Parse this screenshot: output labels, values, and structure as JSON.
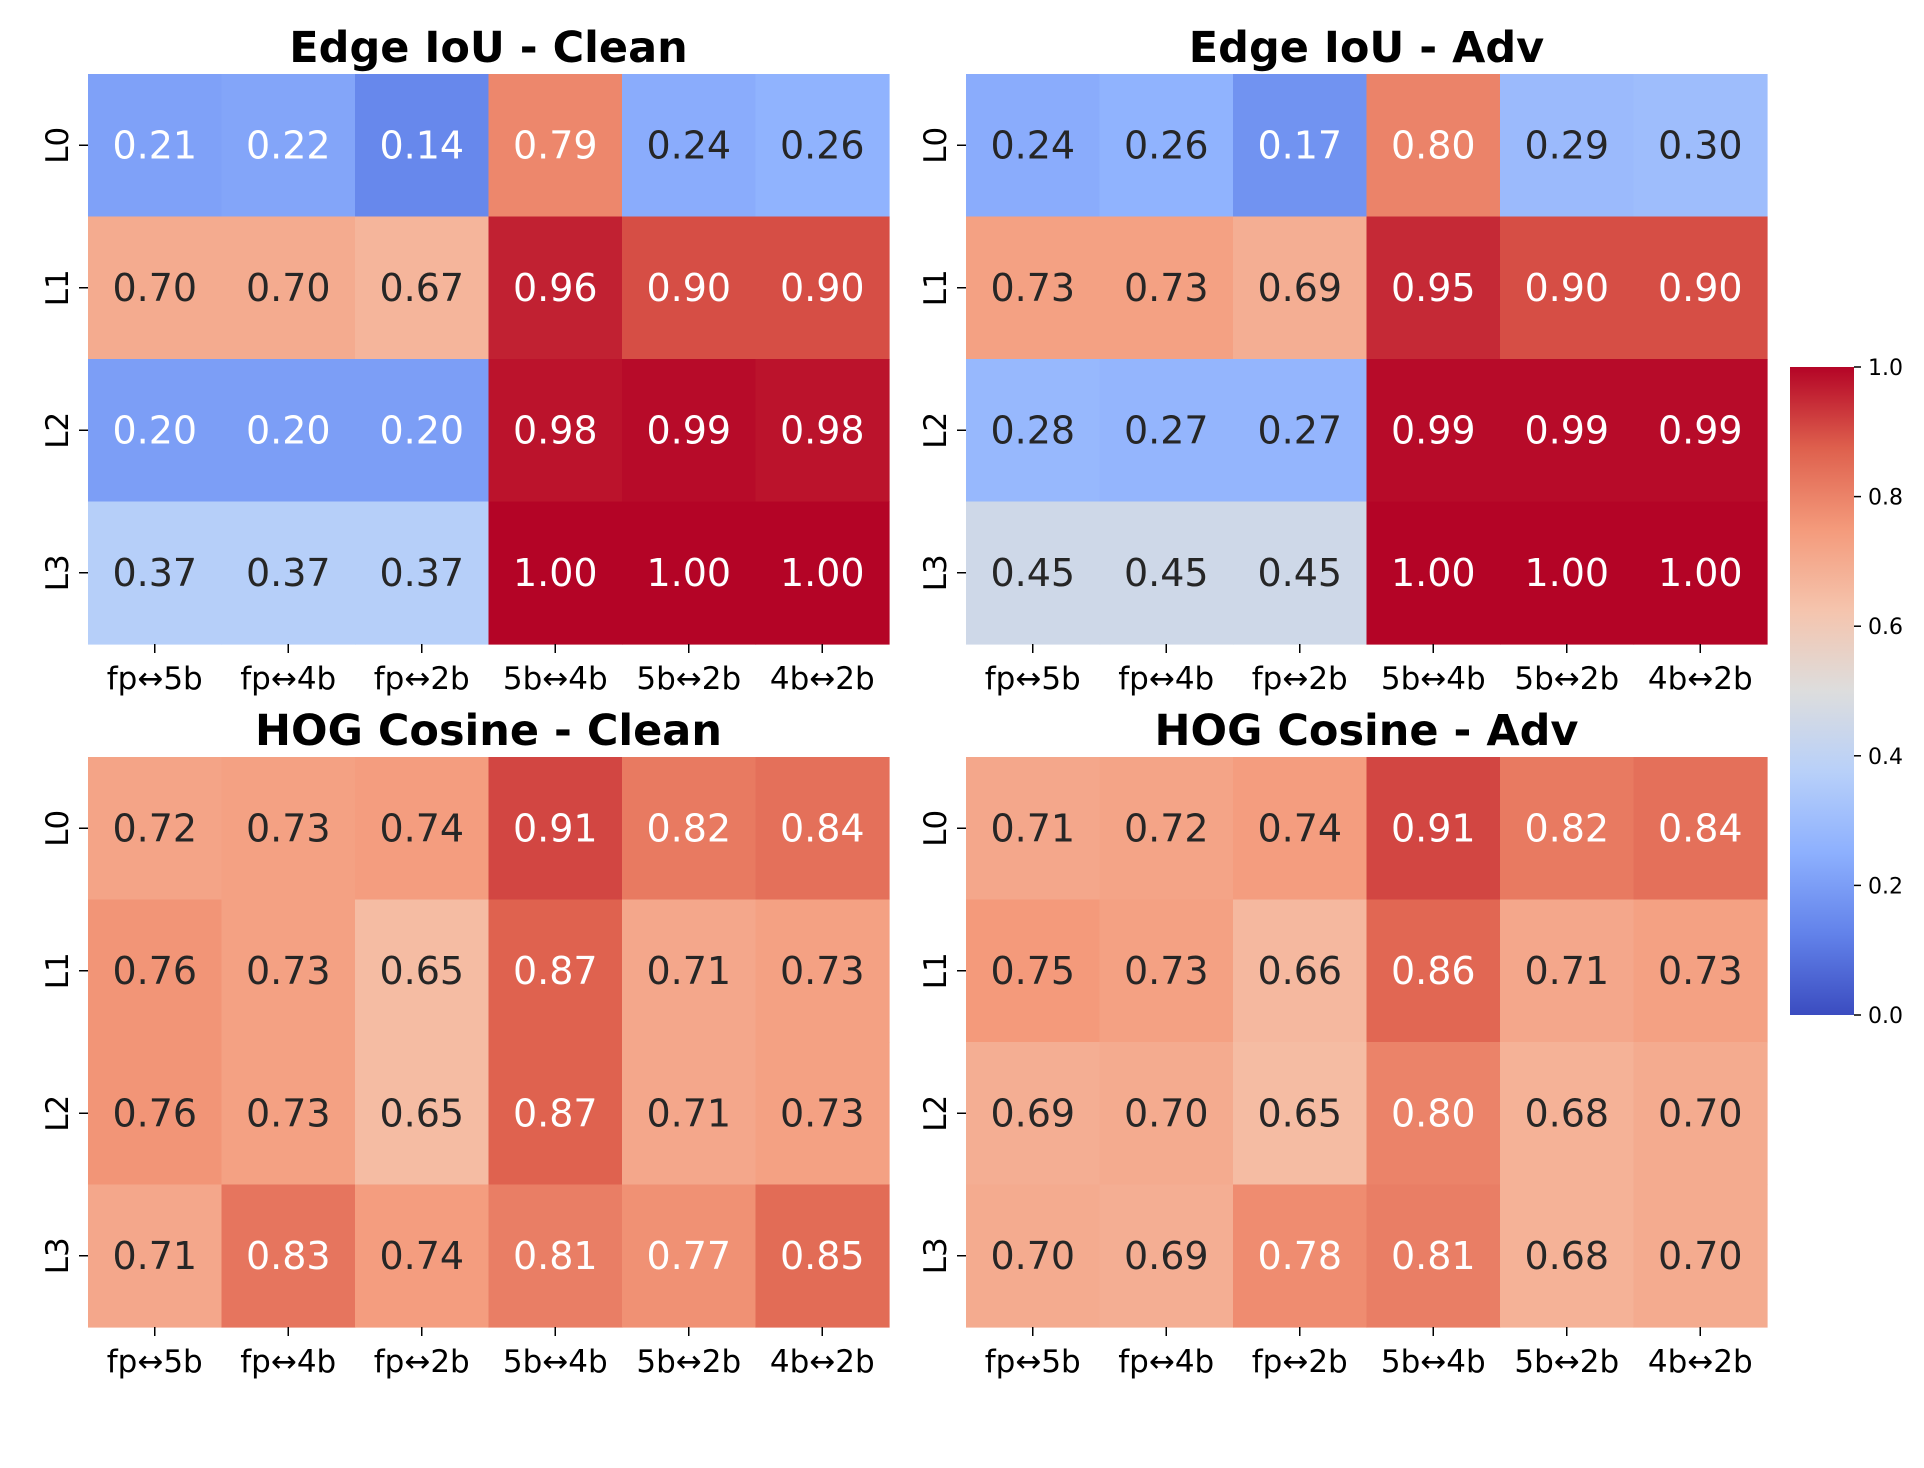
{
  "chart_data": {
    "type": "heatmap",
    "colorbar": {
      "range": [
        0.0,
        1.0
      ],
      "ticks": [
        "0.0",
        "0.2",
        "0.4",
        "0.6",
        "0.8",
        "1.0"
      ],
      "colormap": "coolwarm"
    },
    "panels": [
      {
        "title": "Edge IoU - Clean",
        "columns": [
          "fp↔5b",
          "fp↔4b",
          "fp↔2b",
          "5b↔4b",
          "5b↔2b",
          "4b↔2b"
        ],
        "rows": [
          "L0",
          "L1",
          "L2",
          "L3"
        ],
        "values": [
          [
            0.21,
            0.22,
            0.14,
            0.79,
            0.24,
            0.26
          ],
          [
            0.7,
            0.7,
            0.67,
            0.96,
            0.9,
            0.9
          ],
          [
            0.2,
            0.2,
            0.2,
            0.98,
            0.99,
            0.98
          ],
          [
            0.37,
            0.37,
            0.37,
            1.0,
            1.0,
            1.0
          ]
        ]
      },
      {
        "title": "Edge IoU - Adv",
        "columns": [
          "fp↔5b",
          "fp↔4b",
          "fp↔2b",
          "5b↔4b",
          "5b↔2b",
          "4b↔2b"
        ],
        "rows": [
          "L0",
          "L1",
          "L2",
          "L3"
        ],
        "values": [
          [
            0.24,
            0.26,
            0.17,
            0.8,
            0.29,
            0.3
          ],
          [
            0.73,
            0.73,
            0.69,
            0.95,
            0.9,
            0.9
          ],
          [
            0.28,
            0.27,
            0.27,
            0.99,
            0.99,
            0.99
          ],
          [
            0.45,
            0.45,
            0.45,
            1.0,
            1.0,
            1.0
          ]
        ]
      },
      {
        "title": "HOG Cosine - Clean",
        "columns": [
          "fp↔5b",
          "fp↔4b",
          "fp↔2b",
          "5b↔4b",
          "5b↔2b",
          "4b↔2b"
        ],
        "rows": [
          "L0",
          "L1",
          "L2",
          "L3"
        ],
        "values": [
          [
            0.72,
            0.73,
            0.74,
            0.91,
            0.82,
            0.84
          ],
          [
            0.76,
            0.73,
            0.65,
            0.87,
            0.71,
            0.73
          ],
          [
            0.76,
            0.73,
            0.65,
            0.87,
            0.71,
            0.73
          ],
          [
            0.71,
            0.83,
            0.74,
            0.81,
            0.77,
            0.85
          ]
        ]
      },
      {
        "title": "HOG Cosine - Adv",
        "columns": [
          "fp↔5b",
          "fp↔4b",
          "fp↔2b",
          "5b↔4b",
          "5b↔2b",
          "4b↔2b"
        ],
        "rows": [
          "L0",
          "L1",
          "L2",
          "L3"
        ],
        "values": [
          [
            0.71,
            0.72,
            0.74,
            0.91,
            0.82,
            0.84
          ],
          [
            0.75,
            0.73,
            0.66,
            0.86,
            0.71,
            0.73
          ],
          [
            0.69,
            0.7,
            0.65,
            0.8,
            0.68,
            0.7
          ],
          [
            0.7,
            0.69,
            0.78,
            0.81,
            0.68,
            0.7
          ]
        ]
      }
    ]
  }
}
